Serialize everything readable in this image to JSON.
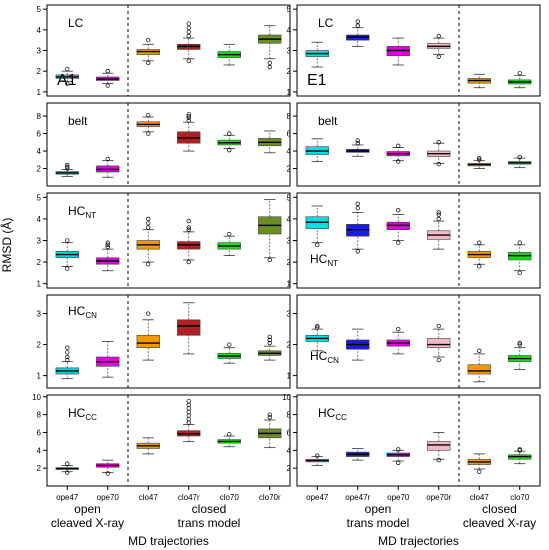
{
  "ytitle": "RMSD (Å)",
  "x_titles": [
    "MD trajectories",
    "MD trajectories"
  ],
  "group_labels": {
    "left": [
      {
        "line1": "open",
        "line2": "cleaved X-ray"
      },
      {
        "line1": "closed",
        "line2": "trans model"
      }
    ],
    "right": [
      {
        "line1": "open",
        "line2": "trans model"
      },
      {
        "line1": "closed",
        "line2": "cleaved X-ray"
      }
    ]
  },
  "columns": [
    {
      "tag": "A1",
      "categories": [
        "ope47",
        "ope70",
        "clo47",
        "clo47r",
        "clo70",
        "clo70r"
      ],
      "colors": [
        "#00d5d5",
        "#e000e0",
        "#f29a00",
        "#b02020",
        "#18e018",
        "#6b8e23"
      ],
      "split_after": 2
    },
    {
      "tag": "E1",
      "categories": [
        "ope47",
        "ope47r",
        "ope70",
        "ope70r",
        "clo47",
        "clo70"
      ],
      "colors": [
        "#00e0e0",
        "#1a1ae0",
        "#e000e0",
        "#f4b8c4",
        "#f29a00",
        "#18e018"
      ],
      "split_after": 4
    }
  ],
  "chart_data": [
    {
      "type": "box",
      "panel": "LC",
      "column": "A1",
      "ylim": [
        0.8,
        5.2
      ],
      "yticks": [
        1,
        2,
        3,
        4,
        5
      ],
      "title": "LC",
      "title_main": "LC",
      "title_sub": "",
      "categories": [
        "ope47",
        "ope70",
        "clo47",
        "clo47r",
        "clo70",
        "clo70r"
      ],
      "boxes": [
        {
          "whisker_low": 1.5,
          "q1": 1.65,
          "median": 1.72,
          "q3": 1.82,
          "whisker_high": 2.0,
          "outliers": [
            1.4,
            2.1
          ]
        },
        {
          "whisker_low": 1.4,
          "q1": 1.55,
          "median": 1.62,
          "q3": 1.72,
          "whisker_high": 1.9,
          "outliers": [
            1.3,
            2.0
          ]
        },
        {
          "whisker_low": 2.5,
          "q1": 2.8,
          "median": 2.95,
          "q3": 3.05,
          "whisker_high": 3.3,
          "outliers": [
            2.4,
            3.5
          ]
        },
        {
          "whisker_low": 2.6,
          "q1": 3.05,
          "median": 3.2,
          "q3": 3.3,
          "whisker_high": 3.6,
          "outliers": [
            2.5,
            3.7,
            3.9,
            4.1,
            4.3
          ]
        },
        {
          "whisker_low": 2.3,
          "q1": 2.65,
          "median": 2.8,
          "q3": 2.95,
          "whisker_high": 3.3,
          "outliers": []
        },
        {
          "whisker_low": 2.6,
          "q1": 3.35,
          "median": 3.55,
          "q3": 3.75,
          "whisker_high": 4.2,
          "outliers": [
            2.2,
            2.4
          ]
        }
      ]
    },
    {
      "type": "box",
      "panel": "LC",
      "column": "E1",
      "ylim": [
        0.8,
        5.2
      ],
      "yticks": [
        1,
        2,
        3,
        4,
        5
      ],
      "title": "LC",
      "title_main": "LC",
      "title_sub": "",
      "categories": [
        "ope47",
        "ope47r",
        "ope70",
        "ope70r",
        "clo47",
        "clo70"
      ],
      "boxes": [
        {
          "whisker_low": 2.2,
          "q1": 2.7,
          "median": 2.85,
          "q3": 3.0,
          "whisker_high": 3.4,
          "outliers": []
        },
        {
          "whisker_low": 3.2,
          "q1": 3.5,
          "median": 3.65,
          "q3": 3.75,
          "whisker_high": 4.1,
          "outliers": [
            4.2,
            4.4
          ]
        },
        {
          "whisker_low": 2.3,
          "q1": 2.75,
          "median": 3.0,
          "q3": 3.2,
          "whisker_high": 3.6,
          "outliers": []
        },
        {
          "whisker_low": 2.8,
          "q1": 3.1,
          "median": 3.2,
          "q3": 3.35,
          "whisker_high": 3.6,
          "outliers": [
            2.7,
            3.7
          ]
        },
        {
          "whisker_low": 1.2,
          "q1": 1.42,
          "median": 1.55,
          "q3": 1.65,
          "whisker_high": 1.85,
          "outliers": []
        },
        {
          "whisker_low": 1.2,
          "q1": 1.38,
          "median": 1.48,
          "q3": 1.58,
          "whisker_high": 1.8,
          "outliers": [
            1.9
          ]
        }
      ]
    },
    {
      "type": "box",
      "panel": "belt",
      "column": "A1",
      "ylim": [
        0,
        9.5
      ],
      "yticks": [
        2,
        4,
        6,
        8
      ],
      "title": "belt",
      "title_main": "belt",
      "title_sub": "",
      "categories": [
        "ope47",
        "ope70",
        "clo47",
        "clo47r",
        "clo70",
        "clo70r"
      ],
      "boxes": [
        {
          "whisker_low": 1.1,
          "q1": 1.35,
          "median": 1.5,
          "q3": 1.65,
          "whisker_high": 1.9,
          "outliers": [
            2.0,
            2.2,
            2.4
          ]
        },
        {
          "whisker_low": 1.0,
          "q1": 1.6,
          "median": 1.9,
          "q3": 2.3,
          "whisker_high": 2.9,
          "outliers": [
            3.1
          ]
        },
        {
          "whisker_low": 6.2,
          "q1": 6.8,
          "median": 7.05,
          "q3": 7.35,
          "whisker_high": 7.9,
          "outliers": [
            6.0,
            8.1
          ]
        },
        {
          "whisker_low": 4.0,
          "q1": 4.9,
          "median": 5.5,
          "q3": 6.2,
          "whisker_high": 7.3,
          "outliers": [
            7.5,
            7.8,
            8.0,
            8.2
          ]
        },
        {
          "whisker_low": 4.3,
          "q1": 4.7,
          "median": 4.95,
          "q3": 5.25,
          "whisker_high": 5.8,
          "outliers": [
            4.1,
            6.0
          ]
        },
        {
          "whisker_low": 3.8,
          "q1": 4.6,
          "median": 5.0,
          "q3": 5.45,
          "whisker_high": 6.3,
          "outliers": []
        }
      ]
    },
    {
      "type": "box",
      "panel": "belt",
      "column": "E1",
      "ylim": [
        0,
        9.5
      ],
      "yticks": [
        2,
        4,
        6,
        8
      ],
      "title": "belt",
      "title_main": "belt",
      "title_sub": "",
      "categories": [
        "ope47",
        "ope47r",
        "ope70",
        "ope70r",
        "clo47",
        "clo70"
      ],
      "boxes": [
        {
          "whisker_low": 2.8,
          "q1": 3.6,
          "median": 4.0,
          "q3": 4.5,
          "whisker_high": 5.4,
          "outliers": []
        },
        {
          "whisker_low": 3.4,
          "q1": 3.85,
          "median": 4.0,
          "q3": 4.2,
          "whisker_high": 4.7,
          "outliers": [
            4.9,
            5.2
          ]
        },
        {
          "whisker_low": 2.9,
          "q1": 3.45,
          "median": 3.7,
          "q3": 3.95,
          "whisker_high": 4.4,
          "outliers": [
            2.8,
            4.6
          ]
        },
        {
          "whisker_low": 2.6,
          "q1": 3.35,
          "median": 3.7,
          "q3": 4.0,
          "whisker_high": 4.9,
          "outliers": [
            2.5,
            5.0
          ]
        },
        {
          "whisker_low": 2.0,
          "q1": 2.3,
          "median": 2.45,
          "q3": 2.6,
          "whisker_high": 2.9,
          "outliers": [
            3.0,
            3.2
          ]
        },
        {
          "whisker_low": 2.1,
          "q1": 2.5,
          "median": 2.65,
          "q3": 2.8,
          "whisker_high": 3.2,
          "outliers": [
            3.3
          ]
        }
      ]
    },
    {
      "type": "box",
      "panel": "HC_NT",
      "column": "A1",
      "ylim": [
        0.8,
        5.2
      ],
      "yticks": [
        1,
        2,
        3,
        4,
        5
      ],
      "title": "HCNT",
      "title_main": "HC",
      "title_sub": "NT",
      "categories": [
        "ope47",
        "ope70",
        "clo47",
        "clo47r",
        "clo70",
        "clo70r"
      ],
      "boxes": [
        {
          "whisker_low": 1.8,
          "q1": 2.2,
          "median": 2.35,
          "q3": 2.5,
          "whisker_high": 2.9,
          "outliers": [
            1.7,
            3.0
          ]
        },
        {
          "whisker_low": 1.6,
          "q1": 1.9,
          "median": 2.05,
          "q3": 2.2,
          "whisker_high": 2.6,
          "outliers": [
            2.7,
            2.8,
            2.9
          ]
        },
        {
          "whisker_low": 2.0,
          "q1": 2.6,
          "median": 2.8,
          "q3": 3.0,
          "whisker_high": 3.5,
          "outliers": [
            1.9,
            3.6,
            3.8,
            4.0
          ]
        },
        {
          "whisker_low": 2.1,
          "q1": 2.6,
          "median": 2.8,
          "q3": 2.95,
          "whisker_high": 3.4,
          "outliers": [
            2.0,
            3.5,
            3.6,
            3.9
          ]
        },
        {
          "whisker_low": 2.3,
          "q1": 2.6,
          "median": 2.75,
          "q3": 2.9,
          "whisker_high": 3.2,
          "outliers": [
            3.3
          ]
        },
        {
          "whisker_low": 2.2,
          "q1": 3.3,
          "median": 3.7,
          "q3": 4.1,
          "whisker_high": 4.9,
          "outliers": [
            2.1
          ]
        }
      ]
    },
    {
      "type": "box",
      "panel": "HC_NT",
      "column": "E1",
      "ylim": [
        0.8,
        5.2
      ],
      "yticks": [
        1,
        2,
        3,
        4,
        5
      ],
      "title": "HCNT",
      "title_main": "HC",
      "title_sub": "NT",
      "categories": [
        "ope47",
        "ope47r",
        "ope70",
        "ope70r",
        "clo47",
        "clo70"
      ],
      "boxes": [
        {
          "whisker_low": 2.9,
          "q1": 3.55,
          "median": 3.85,
          "q3": 4.1,
          "whisker_high": 4.6,
          "outliers": [
            2.8
          ]
        },
        {
          "whisker_low": 2.6,
          "q1": 3.2,
          "median": 3.5,
          "q3": 3.75,
          "whisker_high": 4.3,
          "outliers": [
            2.5,
            4.5,
            4.7
          ]
        },
        {
          "whisker_low": 3.0,
          "q1": 3.5,
          "median": 3.7,
          "q3": 3.85,
          "whisker_high": 4.2,
          "outliers": [
            2.9,
            4.4
          ]
        },
        {
          "whisker_low": 2.6,
          "q1": 3.05,
          "median": 3.25,
          "q3": 3.45,
          "whisker_high": 3.9,
          "outliers": [
            4.0,
            4.2,
            4.3
          ]
        },
        {
          "whisker_low": 1.9,
          "q1": 2.2,
          "median": 2.35,
          "q3": 2.5,
          "whisker_high": 2.8,
          "outliers": [
            1.8,
            2.9
          ]
        },
        {
          "whisker_low": 1.6,
          "q1": 2.1,
          "median": 2.3,
          "q3": 2.45,
          "whisker_high": 2.8,
          "outliers": [
            1.5,
            2.9
          ]
        }
      ]
    },
    {
      "type": "box",
      "panel": "HC_CN",
      "column": "A1",
      "ylim": [
        0.6,
        3.6
      ],
      "yticks": [
        1,
        2,
        3
      ],
      "title": "HCCN",
      "title_main": "HC",
      "title_sub": "CN",
      "categories": [
        "ope47",
        "ope70",
        "clo47",
        "clo47r",
        "clo70",
        "clo70r"
      ],
      "boxes": [
        {
          "whisker_low": 0.9,
          "q1": 1.05,
          "median": 1.15,
          "q3": 1.25,
          "whisker_high": 1.45,
          "outliers": [
            1.5,
            1.6,
            1.75,
            1.9
          ]
        },
        {
          "whisker_low": 0.95,
          "q1": 1.3,
          "median": 1.45,
          "q3": 1.6,
          "whisker_high": 2.1,
          "outliers": []
        },
        {
          "whisker_low": 1.5,
          "q1": 1.9,
          "median": 2.05,
          "q3": 2.3,
          "whisker_high": 2.8,
          "outliers": [
            3.0
          ]
        },
        {
          "whisker_low": 1.7,
          "q1": 2.3,
          "median": 2.6,
          "q3": 2.8,
          "whisker_high": 3.35,
          "outliers": []
        },
        {
          "whisker_low": 1.4,
          "q1": 1.55,
          "median": 1.63,
          "q3": 1.72,
          "whisker_high": 1.9,
          "outliers": [
            2.0
          ]
        },
        {
          "whisker_low": 1.5,
          "q1": 1.65,
          "median": 1.72,
          "q3": 1.8,
          "whisker_high": 1.95,
          "outliers": [
            2.05,
            2.15,
            2.25
          ]
        }
      ]
    },
    {
      "type": "box",
      "panel": "HC_CN",
      "column": "E1",
      "ylim": [
        0.6,
        3.6
      ],
      "yticks": [
        1,
        2,
        3
      ],
      "title": "HCCN",
      "title_main": "HC",
      "title_sub": "CN",
      "categories": [
        "ope47",
        "ope47r",
        "ope70",
        "ope70r",
        "clo47",
        "clo70"
      ],
      "boxes": [
        {
          "whisker_low": 1.8,
          "q1": 2.1,
          "median": 2.2,
          "q3": 2.3,
          "whisker_high": 2.5,
          "outliers": [
            2.55,
            2.6
          ]
        },
        {
          "whisker_low": 1.5,
          "q1": 1.85,
          "median": 2.0,
          "q3": 2.15,
          "whisker_high": 2.5,
          "outliers": []
        },
        {
          "whisker_low": 1.7,
          "q1": 1.95,
          "median": 2.05,
          "q3": 2.15,
          "whisker_high": 2.4,
          "outliers": [
            2.5
          ]
        },
        {
          "whisker_low": 1.6,
          "q1": 1.9,
          "median": 2.0,
          "q3": 2.2,
          "whisker_high": 2.5,
          "outliers": [
            1.5,
            2.6
          ]
        },
        {
          "whisker_low": 0.8,
          "q1": 1.05,
          "median": 1.15,
          "q3": 1.35,
          "whisker_high": 1.7,
          "outliers": [
            1.8
          ]
        },
        {
          "whisker_low": 1.2,
          "q1": 1.45,
          "median": 1.55,
          "q3": 1.65,
          "whisker_high": 1.9,
          "outliers": [
            2.0,
            2.05
          ]
        }
      ]
    },
    {
      "type": "box",
      "panel": "HC_CC",
      "column": "A1",
      "ylim": [
        0,
        10.2
      ],
      "yticks": [
        2,
        4,
        6,
        8,
        10
      ],
      "title": "HCCC",
      "title_main": "HC",
      "title_sub": "CC",
      "categories": [
        "ope47",
        "ope70",
        "clo47",
        "clo47r",
        "clo70",
        "clo70r"
      ],
      "boxes": [
        {
          "whisker_low": 1.6,
          "q1": 1.85,
          "median": 1.95,
          "q3": 2.05,
          "whisker_high": 2.3,
          "outliers": [
            1.5,
            2.5
          ]
        },
        {
          "whisker_low": 1.5,
          "q1": 2.1,
          "median": 2.3,
          "q3": 2.5,
          "whisker_high": 2.9,
          "outliers": [
            1.4
          ]
        },
        {
          "whisker_low": 3.6,
          "q1": 4.2,
          "median": 4.5,
          "q3": 4.8,
          "whisker_high": 5.4,
          "outliers": []
        },
        {
          "whisker_low": 5.0,
          "q1": 5.6,
          "median": 5.85,
          "q3": 6.2,
          "whisker_high": 6.9,
          "outliers": [
            7.1,
            7.5,
            7.9,
            8.3,
            8.7,
            9.1,
            9.5
          ]
        },
        {
          "whisker_low": 4.4,
          "q1": 4.8,
          "median": 5.0,
          "q3": 5.2,
          "whisker_high": 5.6,
          "outliers": [
            5.8
          ]
        },
        {
          "whisker_low": 4.3,
          "q1": 5.4,
          "median": 5.9,
          "q3": 6.4,
          "whisker_high": 7.4,
          "outliers": [
            7.7,
            8.0
          ]
        }
      ]
    },
    {
      "type": "box",
      "panel": "HC_CC",
      "column": "E1",
      "ylim": [
        0,
        10.2
      ],
      "yticks": [
        2,
        4,
        6,
        8,
        10
      ],
      "title": "HCCC",
      "title_main": "HC",
      "title_sub": "CC",
      "categories": [
        "ope47",
        "ope47r",
        "ope70",
        "ope70r",
        "clo47",
        "clo70"
      ],
      "boxes": [
        {
          "whisker_low": 2.3,
          "q1": 2.7,
          "median": 2.85,
          "q3": 3.0,
          "whisker_high": 3.3,
          "outliers": [
            3.4
          ]
        },
        {
          "whisker_low": 2.9,
          "q1": 3.3,
          "median": 3.55,
          "q3": 3.8,
          "whisker_high": 4.2,
          "outliers": []
        },
        {
          "whisker_low": 2.8,
          "q1": 3.3,
          "median": 3.5,
          "q3": 3.7,
          "whisker_high": 4.0,
          "outliers": [
            2.6,
            4.1
          ]
        },
        {
          "whisker_low": 3.0,
          "q1": 4.0,
          "median": 4.6,
          "q3": 5.0,
          "whisker_high": 6.0,
          "outliers": [
            2.9
          ]
        },
        {
          "whisker_low": 1.9,
          "q1": 2.4,
          "median": 2.7,
          "q3": 3.0,
          "whisker_high": 3.6,
          "outliers": [
            1.6
          ]
        },
        {
          "whisker_low": 2.5,
          "q1": 3.0,
          "median": 3.3,
          "q3": 3.5,
          "whisker_high": 3.9,
          "outliers": [
            4.0,
            4.1
          ]
        }
      ]
    }
  ]
}
